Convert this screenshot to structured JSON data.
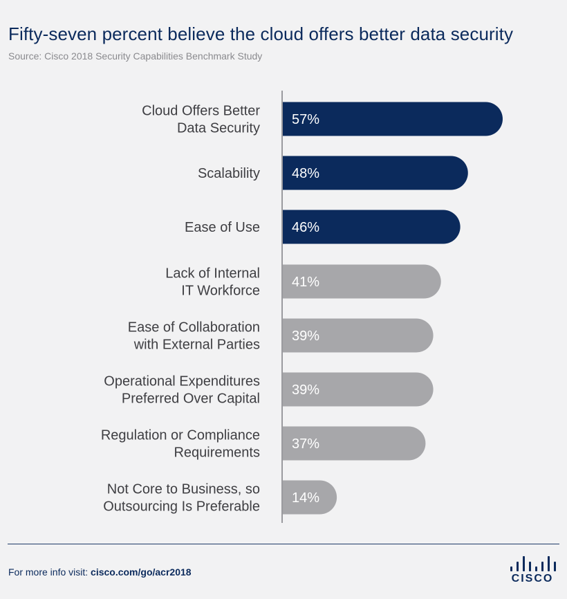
{
  "chart_data": {
    "type": "bar",
    "orientation": "horizontal",
    "title": "Fifty-seven percent believe the cloud offers better data security",
    "subtitle": "Source: Cisco 2018 Security Capabilities Benchmark Study",
    "categories": [
      "Cloud Offers Better\nData Security",
      "Scalability",
      "Ease of Use",
      "Lack of Internal\nIT Workforce",
      "Ease of Collaboration\nwith External Parties",
      "Operational Expenditures\nPreferred Over Capital",
      "Regulation or Compliance\nRequirements",
      "Not Core to Business, so\nOutsourcing Is Preferable"
    ],
    "values": [
      57,
      48,
      46,
      41,
      39,
      39,
      37,
      14
    ],
    "value_labels": [
      "57%",
      "48%",
      "46%",
      "41%",
      "39%",
      "39%",
      "37%",
      "14%"
    ],
    "highlight_count": 3,
    "colors": {
      "highlight": "#0b2a5c",
      "default": "#a7a7aa",
      "axis": "#9a9a9e"
    },
    "xlabel": "",
    "ylabel": "",
    "grid": false
  },
  "footer": {
    "prefix": "For more info visit: ",
    "url": "cisco.com/go/acr2018"
  },
  "logo": {
    "text": "CISCO",
    "icon": "cisco-bridge-logo-icon"
  }
}
